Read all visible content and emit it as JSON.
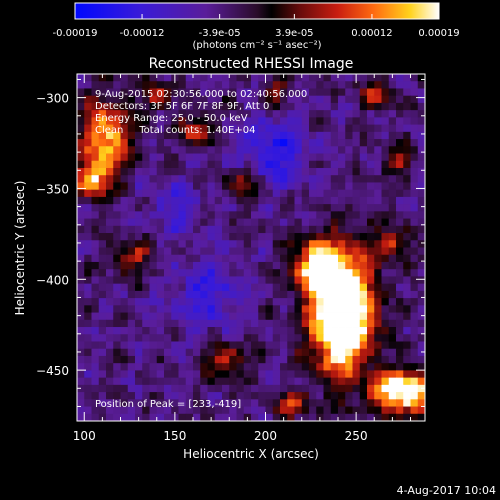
{
  "chart_data": {
    "type": "heatmap",
    "title": "Reconstructed RHESSI Image",
    "xlabel": "Heliocentric X (arcsec)",
    "ylabel": "Heliocentric Y (arcsec)",
    "xlim": [
      96,
      288
    ],
    "ylim": [
      -478,
      -287
    ],
    "x_ticks": [
      100,
      150,
      200,
      250
    ],
    "y_ticks": [
      -300,
      -350,
      -400,
      -450
    ],
    "grid": false,
    "colorbar": {
      "position": "top",
      "range": [
        -0.00019,
        0.00019
      ],
      "tick_labels": [
        "-0.00019",
        "-0.00012",
        "-3.9e-05",
        "3.9e-05",
        "0.00012",
        "0.00019"
      ],
      "units": "(photons cm⁻² s⁻¹ asec⁻²)"
    },
    "annotations": [
      "9-Aug-2015 02:30:56.000 to 02:40:56.000",
      "Detectors: 3F 5F 6F 7F 8F 9F, Att 0",
      "Energy Range: 25.0 - 50.0 keV",
      "Clean     Total counts: 1.40E+04"
    ],
    "peak_label": "Position of Peak = [233,-419]",
    "peak": [
      233,
      -419
    ],
    "date_stamp": "4-Aug-2017 10:04",
    "grid_size": 48,
    "sources": [
      {
        "x": 242,
        "y": -418,
        "sx": 12,
        "sy": 22,
        "v": 1.0
      },
      {
        "x": 228,
        "y": -392,
        "sx": 9,
        "sy": 9,
        "v": 0.55
      },
      {
        "x": 276,
        "y": -462,
        "sx": 12,
        "sy": 8,
        "v": 0.75
      },
      {
        "x": 112,
        "y": -322,
        "sx": 9,
        "sy": 14,
        "v": 0.55
      },
      {
        "x": 104,
        "y": -345,
        "sx": 7,
        "sy": 7,
        "v": 0.45
      },
      {
        "x": 162,
        "y": -318,
        "sx": 7,
        "sy": 7,
        "v": 0.3
      },
      {
        "x": 140,
        "y": -300,
        "sx": 6,
        "sy": 5,
        "v": 0.3
      },
      {
        "x": 188,
        "y": -347,
        "sx": 6,
        "sy": 6,
        "v": 0.3
      },
      {
        "x": 126,
        "y": -388,
        "sx": 8,
        "sy": 6,
        "v": 0.3
      },
      {
        "x": 178,
        "y": -445,
        "sx": 8,
        "sy": 7,
        "v": 0.3
      },
      {
        "x": 214,
        "y": -470,
        "sx": 7,
        "sy": 5,
        "v": 0.3
      },
      {
        "x": 270,
        "y": -380,
        "sx": 7,
        "sy": 6,
        "v": 0.3
      },
      {
        "x": 262,
        "y": -298,
        "sx": 7,
        "sy": 5,
        "v": 0.3
      },
      {
        "x": 274,
        "y": -335,
        "sx": 6,
        "sy": 5,
        "v": 0.28
      },
      {
        "x": 206,
        "y": -298,
        "sx": 5,
        "sy": 5,
        "v": 0.25
      }
    ],
    "cold_spots": [
      {
        "x": 205,
        "y": -330,
        "s": 13,
        "v": 0.28
      },
      {
        "x": 168,
        "y": -410,
        "s": 14,
        "v": 0.22
      },
      {
        "x": 150,
        "y": -360,
        "s": 9,
        "v": 0.2
      }
    ]
  }
}
